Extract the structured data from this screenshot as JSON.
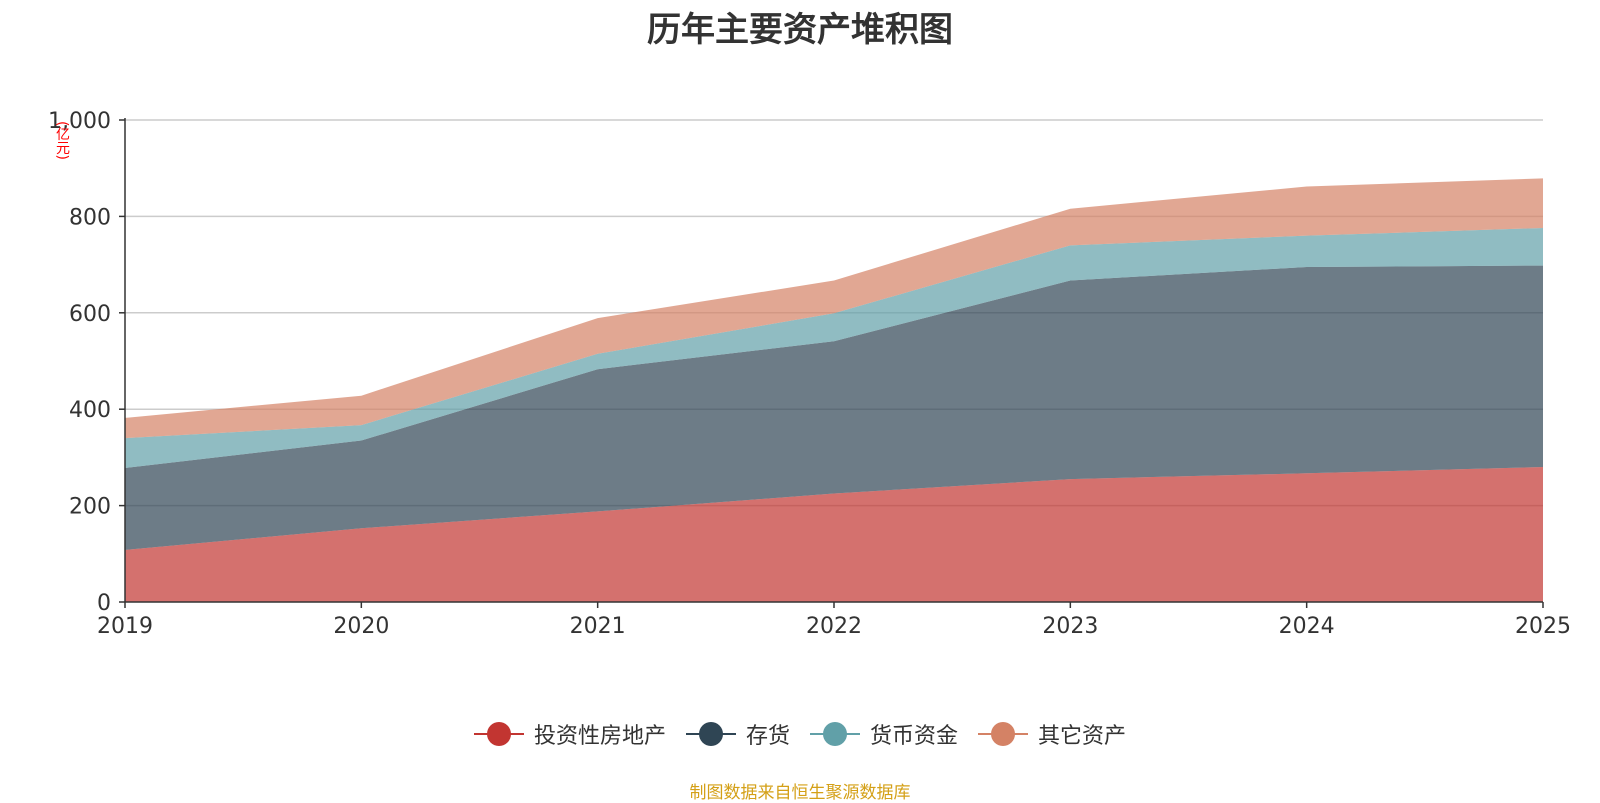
{
  "chart_data": {
    "type": "area",
    "stacked": true,
    "title": "历年主要资产堆积图",
    "ylabel": "(亿元)",
    "xlabel": "",
    "ylim": [
      0,
      1000
    ],
    "yticks": [
      0,
      200,
      400,
      600,
      800,
      1000
    ],
    "ytick_labels": [
      "0",
      "200",
      "400",
      "600",
      "800",
      "1,000"
    ],
    "categories": [
      "2019",
      "2020",
      "2021",
      "2022",
      "2023",
      "2024",
      "2025"
    ],
    "series": [
      {
        "name": "投资性房地产",
        "color": "#c23531",
        "values": [
          108,
          153,
          188,
          225,
          255,
          267,
          280
        ]
      },
      {
        "name": "存货",
        "color": "#2f4554",
        "values": [
          170,
          182,
          295,
          316,
          412,
          428,
          418
        ]
      },
      {
        "name": "货币资金",
        "color": "#61a0a8",
        "values": [
          62,
          32,
          32,
          58,
          73,
          65,
          78
        ]
      },
      {
        "name": "其它资产",
        "color": "#d48265",
        "values": [
          42,
          61,
          74,
          68,
          76,
          102,
          103
        ]
      }
    ],
    "grid": true,
    "legend_position": "bottom-center"
  },
  "footer": {
    "source": "制图数据来自恒生聚源数据库"
  }
}
